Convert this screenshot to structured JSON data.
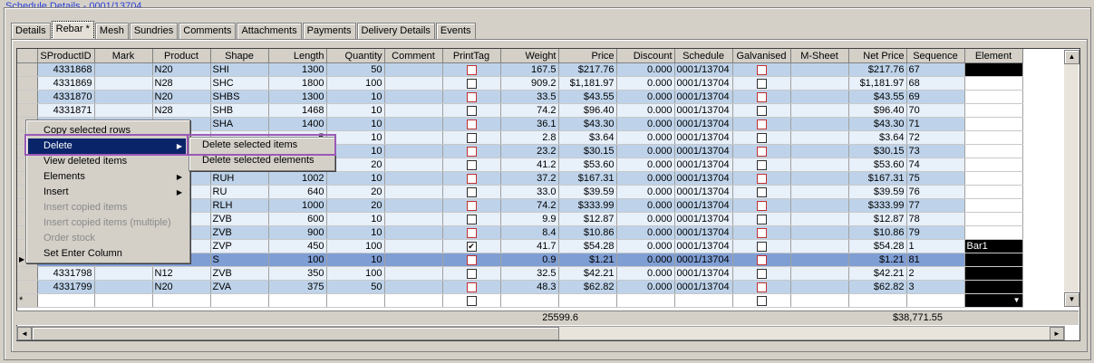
{
  "window_title": "Schedule Details - 0001/13704",
  "tabs": [
    "Details",
    "Rebar *",
    "Mesh",
    "Sundries",
    "Comments",
    "Attachments",
    "Payments",
    "Delivery Details",
    "Events"
  ],
  "columns": [
    "SProductID",
    "Mark",
    "Product",
    "Shape",
    "Length",
    "Quantity",
    "Comment",
    "PrintTag",
    "Weight",
    "Price",
    "Discount",
    "Schedule",
    "Galvanised",
    "M-Sheet",
    "Net Price",
    "Sequence",
    "Element"
  ],
  "rows": [
    {
      "id": "4331868",
      "mark": "",
      "product": "N20",
      "shape": "SHI",
      "length": "1300",
      "qty": "50",
      "printtag": false,
      "weight": "167.5",
      "price": "$217.76",
      "discount": "0.000",
      "schedule": "0001/13704",
      "galv": false,
      "net": "$217.76",
      "seq": "67",
      "element": ""
    },
    {
      "id": "4331869",
      "mark": "",
      "product": "N28",
      "shape": "SHC",
      "length": "1800",
      "qty": "100",
      "printtag": false,
      "weight": "909.2",
      "price": "$1,181.97",
      "discount": "0.000",
      "schedule": "0001/13704",
      "galv": false,
      "net": "$1,181.97",
      "seq": "68",
      "element": ""
    },
    {
      "id": "4331870",
      "mark": "",
      "product": "N20",
      "shape": "SHBS",
      "length": "1300",
      "qty": "10",
      "printtag": false,
      "weight": "33.5",
      "price": "$43.55",
      "discount": "0.000",
      "schedule": "0001/13704",
      "galv": false,
      "net": "$43.55",
      "seq": "69",
      "element": ""
    },
    {
      "id": "4331871",
      "mark": "",
      "product": "N28",
      "shape": "SHB",
      "length": "1468",
      "qty": "10",
      "printtag": false,
      "weight": "74.2",
      "price": "$96.40",
      "discount": "0.000",
      "schedule": "0001/13704",
      "galv": false,
      "net": "$96.40",
      "seq": "70",
      "element": ""
    },
    {
      "id": "",
      "mark": "",
      "product": "",
      "shape": "SHA",
      "length": "1400",
      "qty": "10",
      "printtag": false,
      "weight": "36.1",
      "price": "$43.30",
      "discount": "0.000",
      "schedule": "0001/13704",
      "galv": false,
      "net": "$43.30",
      "seq": "71",
      "element": ""
    },
    {
      "id": "",
      "mark": "",
      "product": "",
      "shape": "",
      "length": "5",
      "qty": "10",
      "printtag": false,
      "weight": "2.8",
      "price": "$3.64",
      "discount": "0.000",
      "schedule": "0001/13704",
      "galv": false,
      "net": "$3.64",
      "seq": "72",
      "element": ""
    },
    {
      "id": "",
      "mark": "",
      "product": "",
      "shape": "",
      "length": "5",
      "qty": "10",
      "printtag": false,
      "weight": "23.2",
      "price": "$30.15",
      "discount": "0.000",
      "schedule": "0001/13704",
      "galv": false,
      "net": "$30.15",
      "seq": "73",
      "element": ""
    },
    {
      "id": "",
      "mark": "",
      "product": "",
      "shape": "",
      "length": "0",
      "qty": "20",
      "printtag": false,
      "weight": "41.2",
      "price": "$53.60",
      "discount": "0.000",
      "schedule": "0001/13704",
      "galv": false,
      "net": "$53.60",
      "seq": "74",
      "element": ""
    },
    {
      "id": "",
      "mark": "",
      "product": "",
      "shape": "RUH",
      "length": "1002",
      "qty": "10",
      "printtag": false,
      "weight": "37.2",
      "price": "$167.31",
      "discount": "0.000",
      "schedule": "0001/13704",
      "galv": false,
      "net": "$167.31",
      "seq": "75",
      "element": ""
    },
    {
      "id": "",
      "mark": "",
      "product": "",
      "shape": "RU",
      "length": "640",
      "qty": "20",
      "printtag": false,
      "weight": "33.0",
      "price": "$39.59",
      "discount": "0.000",
      "schedule": "0001/13704",
      "galv": false,
      "net": "$39.59",
      "seq": "76",
      "element": ""
    },
    {
      "id": "",
      "mark": "",
      "product": "",
      "shape": "RLH",
      "length": "1000",
      "qty": "20",
      "printtag": false,
      "weight": "74.2",
      "price": "$333.99",
      "discount": "0.000",
      "schedule": "0001/13704",
      "galv": false,
      "net": "$333.99",
      "seq": "77",
      "element": ""
    },
    {
      "id": "",
      "mark": "",
      "product": "",
      "shape": "ZVB",
      "length": "600",
      "qty": "10",
      "printtag": false,
      "weight": "9.9",
      "price": "$12.87",
      "discount": "0.000",
      "schedule": "0001/13704",
      "galv": false,
      "net": "$12.87",
      "seq": "78",
      "element": ""
    },
    {
      "id": "",
      "mark": "",
      "product": "",
      "shape": "ZVB",
      "length": "900",
      "qty": "10",
      "printtag": false,
      "weight": "8.4",
      "price": "$10.86",
      "discount": "0.000",
      "schedule": "0001/13704",
      "galv": false,
      "net": "$10.86",
      "seq": "79",
      "element": ""
    },
    {
      "id": "",
      "mark": "",
      "product": "",
      "shape": "ZVP",
      "length": "450",
      "qty": "100",
      "printtag": true,
      "weight": "41.7",
      "price": "$54.28",
      "discount": "0.000",
      "schedule": "0001/13704",
      "galv": false,
      "net": "$54.28",
      "seq": "1",
      "element": "Bar1"
    },
    {
      "id": "",
      "mark": "",
      "product": "",
      "shape": "S",
      "length": "100",
      "qty": "10",
      "printtag": false,
      "weight": "0.9",
      "price": "$1.21",
      "discount": "0.000",
      "schedule": "0001/13704",
      "galv": false,
      "net": "$1.21",
      "seq": "81",
      "element": ""
    },
    {
      "id": "4331798",
      "mark": "",
      "product": "N12",
      "shape": "ZVB",
      "length": "350",
      "qty": "100",
      "printtag": false,
      "weight": "32.5",
      "price": "$42.21",
      "discount": "0.000",
      "schedule": "0001/13704",
      "galv": false,
      "net": "$42.21",
      "seq": "2",
      "element": ""
    },
    {
      "id": "4331799",
      "mark": "",
      "product": "N20",
      "shape": "ZVA",
      "length": "375",
      "qty": "50",
      "printtag": false,
      "weight": "48.3",
      "price": "$62.82",
      "discount": "0.000",
      "schedule": "0001/13704",
      "galv": false,
      "net": "$62.82",
      "seq": "3",
      "element": ""
    }
  ],
  "totals": {
    "weight": "25599.6",
    "net_price": "$38,771.55"
  },
  "new_row_marker": "*",
  "context_menu": {
    "items": [
      {
        "label": "Copy selected rows",
        "disabled": false,
        "submenu": false
      },
      {
        "label": "Delete",
        "disabled": false,
        "submenu": true
      },
      {
        "label": "View deleted items",
        "disabled": false,
        "submenu": false
      },
      {
        "label": "Elements",
        "disabled": false,
        "submenu": true
      },
      {
        "label": "Insert",
        "disabled": false,
        "submenu": true
      },
      {
        "label": "Insert copied items",
        "disabled": true,
        "submenu": false
      },
      {
        "label": "Insert copied items (multiple)",
        "disabled": true,
        "submenu": false
      },
      {
        "label": "Order stock",
        "disabled": true,
        "submenu": false
      },
      {
        "label": "Set Enter Column",
        "disabled": false,
        "submenu": false
      }
    ],
    "submenu": [
      "Delete selected items",
      "Delete selected elements"
    ]
  },
  "colors": {
    "row_odd": "#bed3ea",
    "row_even": "#e8f0fa",
    "row_selected": "#7f9ed4",
    "menu_highlight": "#0a246a",
    "annotation": "#9b59b6",
    "title": "#2a3fd6"
  }
}
